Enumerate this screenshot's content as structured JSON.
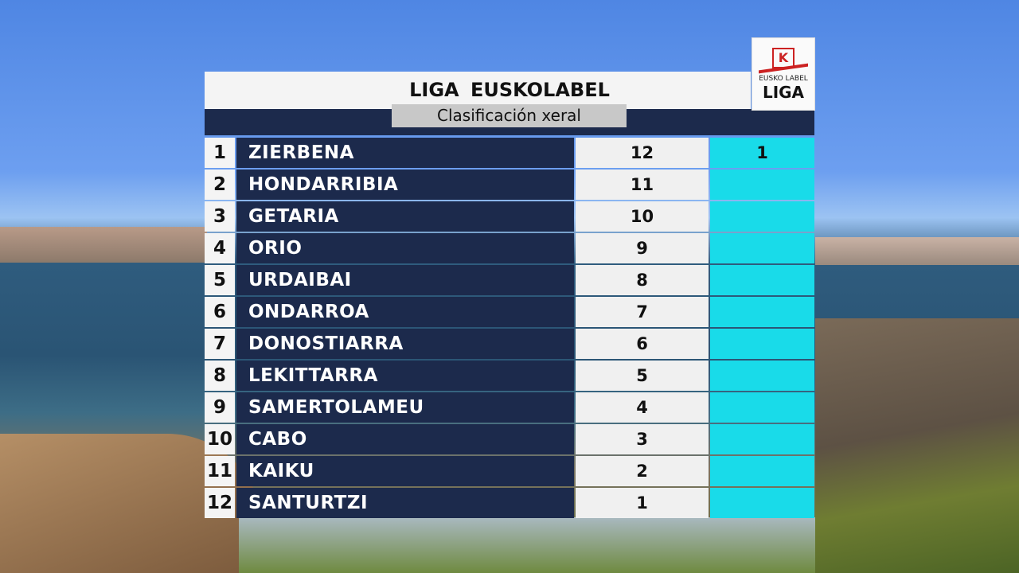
{
  "header": {
    "title": "LIGA  EUSKOLABEL",
    "subtitle": "Clasificación xeral"
  },
  "logo": {
    "mark": "K",
    "brand": "EUSKO LABEL",
    "name": "LIGA"
  },
  "table": {
    "rows": [
      {
        "rank": 1,
        "team": "ZIERBENA",
        "points": 12,
        "extra": 1
      },
      {
        "rank": 2,
        "team": "HONDARRIBIA",
        "points": 11
      },
      {
        "rank": 3,
        "team": "GETARIA",
        "points": 10
      },
      {
        "rank": 4,
        "team": "ORIO",
        "points": 9
      },
      {
        "rank": 5,
        "team": "URDAIBAI",
        "points": 8
      },
      {
        "rank": 6,
        "team": "ONDARROA",
        "points": 7
      },
      {
        "rank": 7,
        "team": "DONOSTIARRA",
        "points": 6
      },
      {
        "rank": 8,
        "team": "LEKITTARRA",
        "points": 5
      },
      {
        "rank": 9,
        "team": "SAMERTOLAMEU",
        "points": 4
      },
      {
        "rank": 10,
        "team": "CABO",
        "points": 3
      },
      {
        "rank": 11,
        "team": "KAIKU",
        "points": 2
      },
      {
        "rank": 12,
        "team": "SANTURTZI",
        "points": 1
      }
    ]
  }
}
